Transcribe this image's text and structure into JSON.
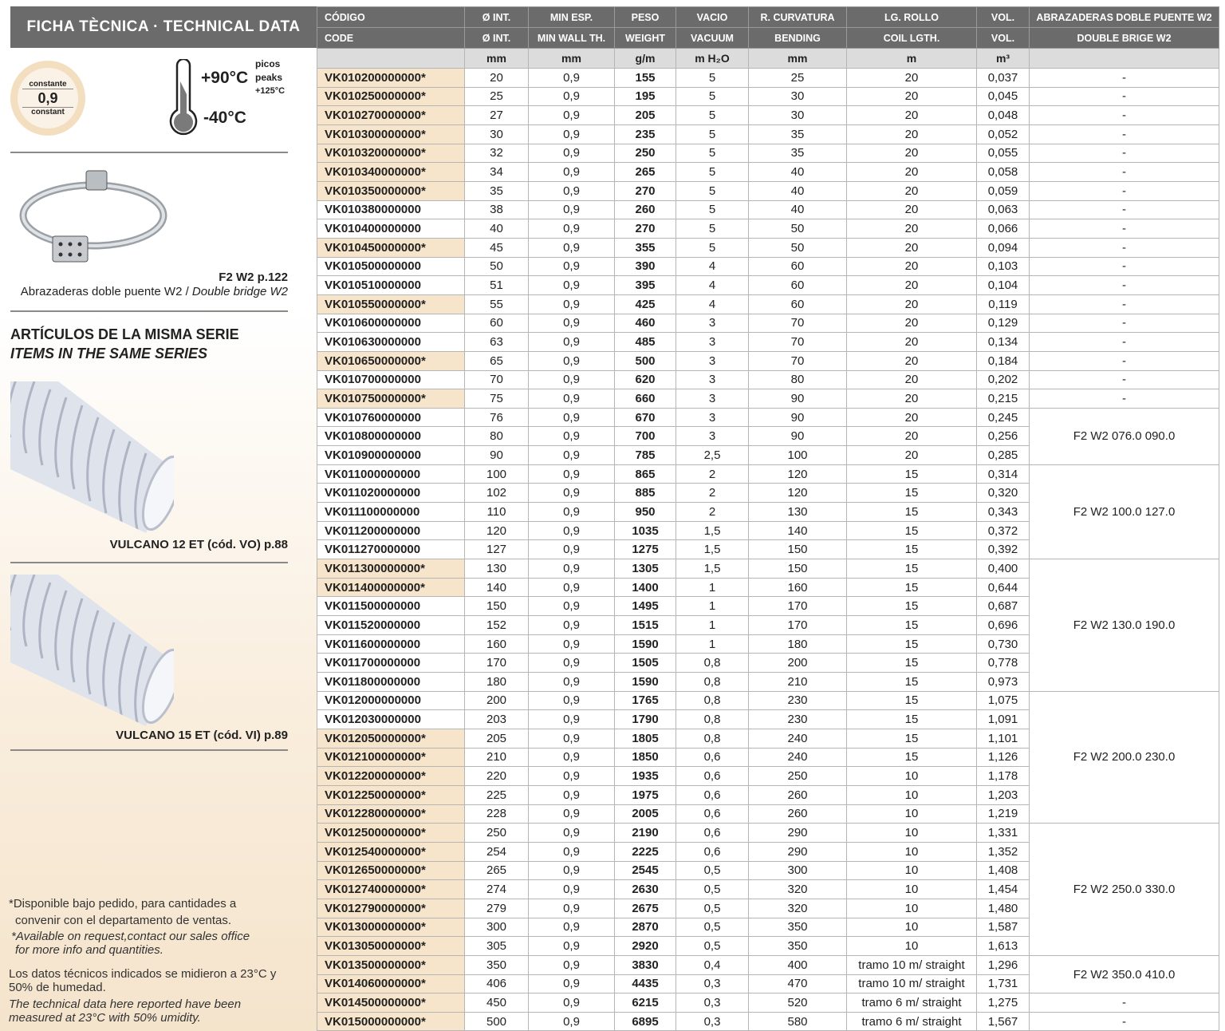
{
  "left": {
    "title": "FICHA TÈCNICA · TECHNICAL DATA",
    "wall_badge": {
      "top": "constante",
      "value": "0,9",
      "bottom": "constant"
    },
    "temp": {
      "max": "+90°C",
      "min": "-40°C",
      "peaks_es": "picos",
      "peaks_en": "peaks",
      "peaks_value": "+125°C"
    },
    "clamp": {
      "ref": "F2 W2 p.122",
      "desc_es": "Abrazaderas doble puente W2 / ",
      "desc_en": "Double bridge W2"
    },
    "series_title_es": "ARTÍCULOS DE LA MISMA SERIE",
    "series_title_en": "ITEMS IN THE SAME SERIES",
    "series": [
      {
        "label": "VULCANO 12 ET (cód. VO) p.88"
      },
      {
        "label": "VULCANO 15 ET (cód. VI) p.89"
      }
    ],
    "notes": {
      "avail_es_1": "*Disponible bajo pedido, para cantidades a",
      "avail_es_2": "convenir con el departamento de ventas.",
      "avail_en_1": "*Available on request,contact our sales office",
      "avail_en_2": "for more info and quantities.",
      "cond_es_1": "Los datos técnicos indicados se midieron a 23°C y",
      "cond_es_2": "50% de humedad.",
      "cond_en_1": "The technical data here reported have been",
      "cond_en_2": "measured at 23°C with 50% umidity."
    }
  },
  "table": {
    "headers_es": [
      "CÓDIGO",
      "Ø INT.",
      "MIN ESP.",
      "PESO",
      "VACIO",
      "R. CURVATURA",
      "LG. ROLLO",
      "VOL.",
      "ABRAZADERAS DOBLE PUENTE W2"
    ],
    "headers_en": [
      "CODE",
      "Ø INT.",
      "MIN WALL TH.",
      "WEIGHT",
      "VACUUM",
      "BENDING",
      "COIL LGTH.",
      "VOL.",
      "DOUBLE BRIGE W2"
    ],
    "units": [
      "",
      "mm",
      "mm",
      "g/m",
      "m H₂O",
      "mm",
      "m",
      "m³",
      ""
    ],
    "highlight_color": "#f7e5cb",
    "rows": [
      [
        "VK010200000000*",
        "20",
        "0,9",
        "155",
        "5",
        "25",
        "20",
        "0,037",
        "-"
      ],
      [
        "VK010250000000*",
        "25",
        "0,9",
        "195",
        "5",
        "30",
        "20",
        "0,045",
        "-"
      ],
      [
        "VK010270000000*",
        "27",
        "0,9",
        "205",
        "5",
        "30",
        "20",
        "0,048",
        "-"
      ],
      [
        "VK010300000000*",
        "30",
        "0,9",
        "235",
        "5",
        "35",
        "20",
        "0,052",
        "-"
      ],
      [
        "VK010320000000*",
        "32",
        "0,9",
        "250",
        "5",
        "35",
        "20",
        "0,055",
        "-"
      ],
      [
        "VK010340000000*",
        "34",
        "0,9",
        "265",
        "5",
        "40",
        "20",
        "0,058",
        "-"
      ],
      [
        "VK010350000000*",
        "35",
        "0,9",
        "270",
        "5",
        "40",
        "20",
        "0,059",
        "-"
      ],
      [
        "VK010380000000",
        "38",
        "0,9",
        "260",
        "5",
        "40",
        "20",
        "0,063",
        "-"
      ],
      [
        "VK010400000000",
        "40",
        "0,9",
        "270",
        "5",
        "50",
        "20",
        "0,066",
        "-"
      ],
      [
        "VK010450000000*",
        "45",
        "0,9",
        "355",
        "5",
        "50",
        "20",
        "0,094",
        "-"
      ],
      [
        "VK010500000000",
        "50",
        "0,9",
        "390",
        "4",
        "60",
        "20",
        "0,103",
        "-"
      ],
      [
        "VK010510000000",
        "51",
        "0,9",
        "395",
        "4",
        "60",
        "20",
        "0,104",
        "-"
      ],
      [
        "VK010550000000*",
        "55",
        "0,9",
        "425",
        "4",
        "60",
        "20",
        "0,119",
        "-"
      ],
      [
        "VK010600000000",
        "60",
        "0,9",
        "460",
        "3",
        "70",
        "20",
        "0,129",
        "-"
      ],
      [
        "VK010630000000",
        "63",
        "0,9",
        "485",
        "3",
        "70",
        "20",
        "0,134",
        "-"
      ],
      [
        "VK010650000000*",
        "65",
        "0,9",
        "500",
        "3",
        "70",
        "20",
        "0,184",
        "-"
      ],
      [
        "VK010700000000",
        "70",
        "0,9",
        "620",
        "3",
        "80",
        "20",
        "0,202",
        "-"
      ],
      [
        "VK010750000000*",
        "75",
        "0,9",
        "660",
        "3",
        "90",
        "20",
        "0,215",
        "-"
      ],
      [
        "VK010760000000",
        "76",
        "0,9",
        "670",
        "3",
        "90",
        "20",
        "0,245",
        "F2 W2 076.0 090.0"
      ],
      [
        "VK010800000000",
        "80",
        "0,9",
        "700",
        "3",
        "90",
        "20",
        "0,256",
        "F2 W2 076.0 090.0"
      ],
      [
        "VK010900000000",
        "90",
        "0,9",
        "785",
        "2,5",
        "100",
        "20",
        "0,285",
        "F2 W2 076.0 090.0"
      ],
      [
        "VK011000000000",
        "100",
        "0,9",
        "865",
        "2",
        "120",
        "15",
        "0,314",
        "F2 W2 100.0 127.0"
      ],
      [
        "VK011020000000",
        "102",
        "0,9",
        "885",
        "2",
        "120",
        "15",
        "0,320",
        "F2 W2 100.0 127.0"
      ],
      [
        "VK011100000000",
        "110",
        "0,9",
        "950",
        "2",
        "130",
        "15",
        "0,343",
        "F2 W2 100.0 127.0"
      ],
      [
        "VK011200000000",
        "120",
        "0,9",
        "1035",
        "1,5",
        "140",
        "15",
        "0,372",
        "F2 W2 100.0 127.0"
      ],
      [
        "VK011270000000",
        "127",
        "0,9",
        "1275",
        "1,5",
        "150",
        "15",
        "0,392",
        "F2 W2 100.0 127.0"
      ],
      [
        "VK011300000000*",
        "130",
        "0,9",
        "1305",
        "1,5",
        "150",
        "15",
        "0,400",
        "F2 W2 130.0 190.0"
      ],
      [
        "VK011400000000*",
        "140",
        "0,9",
        "1400",
        "1",
        "160",
        "15",
        "0,644",
        "F2 W2 130.0 190.0"
      ],
      [
        "VK011500000000",
        "150",
        "0,9",
        "1495",
        "1",
        "170",
        "15",
        "0,687",
        "F2 W2 130.0 190.0"
      ],
      [
        "VK011520000000",
        "152",
        "0,9",
        "1515",
        "1",
        "170",
        "15",
        "0,696",
        "F2 W2 130.0 190.0"
      ],
      [
        "VK011600000000",
        "160",
        "0,9",
        "1590",
        "1",
        "180",
        "15",
        "0,730",
        "F2 W2 130.0 190.0"
      ],
      [
        "VK011700000000",
        "170",
        "0,9",
        "1505",
        "0,8",
        "200",
        "15",
        "0,778",
        "F2 W2 130.0 190.0"
      ],
      [
        "VK011800000000",
        "180",
        "0,9",
        "1590",
        "0,8",
        "210",
        "15",
        "0,973",
        "F2 W2 130.0 190.0"
      ],
      [
        "VK012000000000",
        "200",
        "0,9",
        "1765",
        "0,8",
        "230",
        "15",
        "1,075",
        "F2 W2 200.0 230.0"
      ],
      [
        "VK012030000000",
        "203",
        "0,9",
        "1790",
        "0,8",
        "230",
        "15",
        "1,091",
        "F2 W2 200.0 230.0"
      ],
      [
        "VK012050000000*",
        "205",
        "0,9",
        "1805",
        "0,8",
        "240",
        "15",
        "1,101",
        "F2 W2 200.0 230.0"
      ],
      [
        "VK012100000000*",
        "210",
        "0,9",
        "1850",
        "0,6",
        "240",
        "15",
        "1,126",
        "F2 W2 200.0 230.0"
      ],
      [
        "VK012200000000*",
        "220",
        "0,9",
        "1935",
        "0,6",
        "250",
        "10",
        "1,178",
        "F2 W2 200.0 230.0"
      ],
      [
        "VK012250000000*",
        "225",
        "0,9",
        "1975",
        "0,6",
        "260",
        "10",
        "1,203",
        "F2 W2 200.0 230.0"
      ],
      [
        "VK012280000000*",
        "228",
        "0,9",
        "2005",
        "0,6",
        "260",
        "10",
        "1,219",
        "F2 W2 200.0 230.0"
      ],
      [
        "VK012500000000*",
        "250",
        "0,9",
        "2190",
        "0,6",
        "290",
        "10",
        "1,331",
        "F2 W2 250.0 330.0"
      ],
      [
        "VK012540000000*",
        "254",
        "0,9",
        "2225",
        "0,6",
        "290",
        "10",
        "1,352",
        "F2 W2 250.0 330.0"
      ],
      [
        "VK012650000000*",
        "265",
        "0,9",
        "2545",
        "0,5",
        "300",
        "10",
        "1,408",
        "F2 W2 250.0 330.0"
      ],
      [
        "VK012740000000*",
        "274",
        "0,9",
        "2630",
        "0,5",
        "320",
        "10",
        "1,454",
        "F2 W2 250.0 330.0"
      ],
      [
        "VK012790000000*",
        "279",
        "0,9",
        "2675",
        "0,5",
        "320",
        "10",
        "1,480",
        "F2 W2 250.0 330.0"
      ],
      [
        "VK013000000000*",
        "300",
        "0,9",
        "2870",
        "0,5",
        "350",
        "10",
        "1,587",
        "F2 W2 250.0 330.0"
      ],
      [
        "VK013050000000*",
        "305",
        "0,9",
        "2920",
        "0,5",
        "350",
        "10",
        "1,613",
        "F2 W2 250.0 330.0"
      ],
      [
        "VK013500000000*",
        "350",
        "0,9",
        "3830",
        "0,4",
        "400",
        "tramo 10 m/ straight",
        "1,296",
        "F2 W2 350.0 410.0"
      ],
      [
        "VK014060000000*",
        "406",
        "0,9",
        "4435",
        "0,3",
        "470",
        "tramo 10 m/ straight",
        "1,731",
        "F2 W2 350.0 410.0"
      ],
      [
        "VK014500000000*",
        "450",
        "0,9",
        "6215",
        "0,3",
        "520",
        "tramo 6 m/ straight",
        "1,275",
        "-"
      ],
      [
        "VK015000000000*",
        "500",
        "0,9",
        "6895",
        "0,3",
        "580",
        "tramo 6 m/ straight",
        "1,567",
        "-"
      ]
    ]
  }
}
